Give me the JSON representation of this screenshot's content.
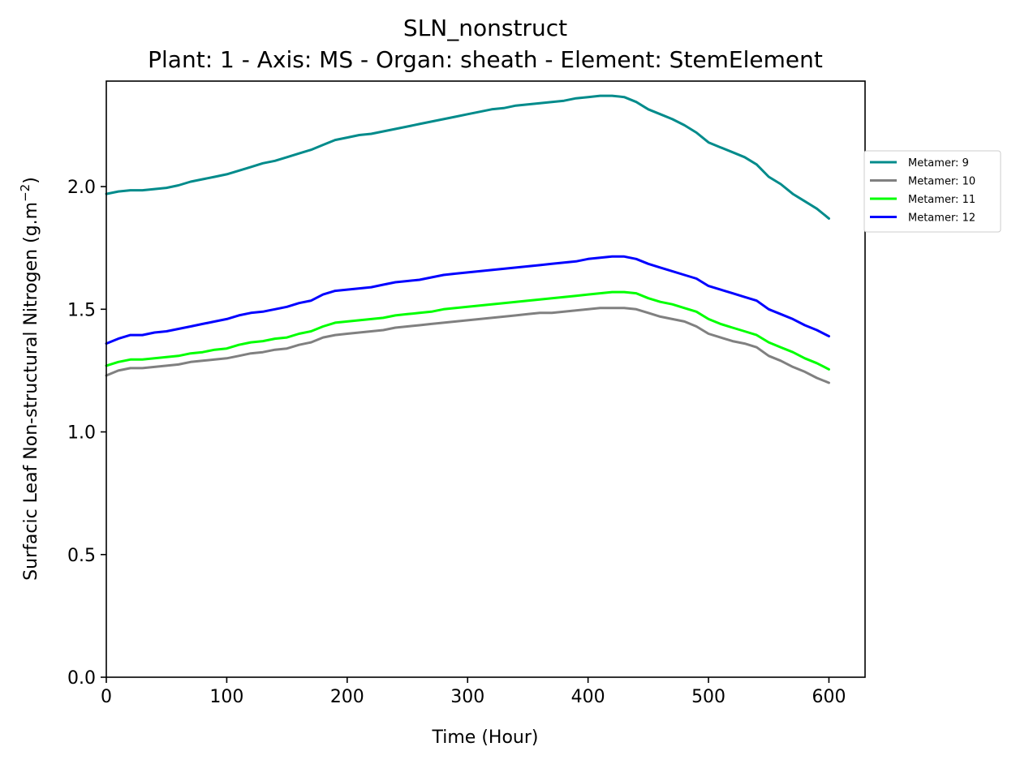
{
  "chart_data": {
    "type": "line",
    "title": "SLN_nonstruct",
    "subtitle": "Plant: 1 - Axis: MS - Organ: sheath - Element: StemElement",
    "xlabel": "Time (Hour)",
    "ylabel": "Surfacic Leaf Non-structural Nitrogen (g.m",
    "ylabel_unit_exponent": "−2",
    "ylabel_suffix": ")",
    "xlim": [
      0,
      630
    ],
    "ylim": [
      0.0,
      2.43
    ],
    "xticks": [
      0,
      100,
      200,
      300,
      400,
      500,
      600
    ],
    "xtick_labels": [
      "0",
      "100",
      "200",
      "300",
      "400",
      "500",
      "600"
    ],
    "yticks": [
      0.0,
      0.5,
      1.0,
      1.5,
      2.0
    ],
    "ytick_labels": [
      "0.0",
      "0.5",
      "1.0",
      "1.5",
      "2.0"
    ],
    "grid": false,
    "legend_position": "outside-right",
    "x": [
      0,
      10,
      20,
      30,
      40,
      50,
      60,
      70,
      80,
      90,
      100,
      110,
      120,
      130,
      140,
      150,
      160,
      170,
      180,
      190,
      200,
      210,
      220,
      230,
      240,
      250,
      260,
      270,
      280,
      290,
      300,
      310,
      320,
      330,
      340,
      350,
      360,
      370,
      380,
      390,
      400,
      410,
      420,
      430,
      440,
      450,
      460,
      470,
      480,
      490,
      500,
      510,
      520,
      530,
      540,
      550,
      560,
      570,
      580,
      590,
      600
    ],
    "series": [
      {
        "name": "Metamer: 9",
        "color": "#008b8b",
        "values": [
          1.97,
          1.98,
          1.985,
          1.985,
          1.99,
          1.995,
          2.005,
          2.02,
          2.03,
          2.04,
          2.05,
          2.065,
          2.08,
          2.095,
          2.105,
          2.12,
          2.135,
          2.15,
          2.17,
          2.19,
          2.2,
          2.21,
          2.215,
          2.225,
          2.235,
          2.245,
          2.255,
          2.265,
          2.275,
          2.285,
          2.295,
          2.305,
          2.315,
          2.32,
          2.33,
          2.335,
          2.34,
          2.345,
          2.35,
          2.36,
          2.365,
          2.37,
          2.37,
          2.365,
          2.345,
          2.315,
          2.295,
          2.275,
          2.25,
          2.22,
          2.18,
          2.16,
          2.14,
          2.12,
          2.09,
          2.04,
          2.01,
          1.97,
          1.94,
          1.91,
          1.87
        ]
      },
      {
        "name": "Metamer: 10",
        "color": "#808080",
        "values": [
          1.23,
          1.25,
          1.26,
          1.26,
          1.265,
          1.27,
          1.275,
          1.285,
          1.29,
          1.295,
          1.3,
          1.31,
          1.32,
          1.325,
          1.335,
          1.34,
          1.355,
          1.365,
          1.385,
          1.395,
          1.4,
          1.405,
          1.41,
          1.415,
          1.425,
          1.43,
          1.435,
          1.44,
          1.445,
          1.45,
          1.455,
          1.46,
          1.465,
          1.47,
          1.475,
          1.48,
          1.485,
          1.485,
          1.49,
          1.495,
          1.5,
          1.505,
          1.505,
          1.505,
          1.5,
          1.485,
          1.47,
          1.46,
          1.45,
          1.43,
          1.4,
          1.385,
          1.37,
          1.36,
          1.345,
          1.31,
          1.29,
          1.265,
          1.245,
          1.22,
          1.2
        ]
      },
      {
        "name": "Metamer: 11",
        "color": "#00ff00",
        "values": [
          1.27,
          1.285,
          1.295,
          1.295,
          1.3,
          1.305,
          1.31,
          1.32,
          1.325,
          1.335,
          1.34,
          1.355,
          1.365,
          1.37,
          1.38,
          1.385,
          1.4,
          1.41,
          1.43,
          1.445,
          1.45,
          1.455,
          1.46,
          1.465,
          1.475,
          1.48,
          1.485,
          1.49,
          1.5,
          1.505,
          1.51,
          1.515,
          1.52,
          1.525,
          1.53,
          1.535,
          1.54,
          1.545,
          1.55,
          1.555,
          1.56,
          1.565,
          1.57,
          1.57,
          1.565,
          1.545,
          1.53,
          1.52,
          1.505,
          1.49,
          1.46,
          1.44,
          1.425,
          1.41,
          1.395,
          1.365,
          1.345,
          1.325,
          1.3,
          1.28,
          1.255
        ]
      },
      {
        "name": "Metamer: 12",
        "color": "#0000ff",
        "values": [
          1.36,
          1.38,
          1.395,
          1.395,
          1.405,
          1.41,
          1.42,
          1.43,
          1.44,
          1.45,
          1.46,
          1.475,
          1.485,
          1.49,
          1.5,
          1.51,
          1.525,
          1.535,
          1.56,
          1.575,
          1.58,
          1.585,
          1.59,
          1.6,
          1.61,
          1.615,
          1.62,
          1.63,
          1.64,
          1.645,
          1.65,
          1.655,
          1.66,
          1.665,
          1.67,
          1.675,
          1.68,
          1.685,
          1.69,
          1.695,
          1.705,
          1.71,
          1.715,
          1.715,
          1.705,
          1.685,
          1.67,
          1.655,
          1.64,
          1.625,
          1.595,
          1.58,
          1.565,
          1.55,
          1.535,
          1.5,
          1.48,
          1.46,
          1.435,
          1.415,
          1.39
        ]
      }
    ]
  }
}
